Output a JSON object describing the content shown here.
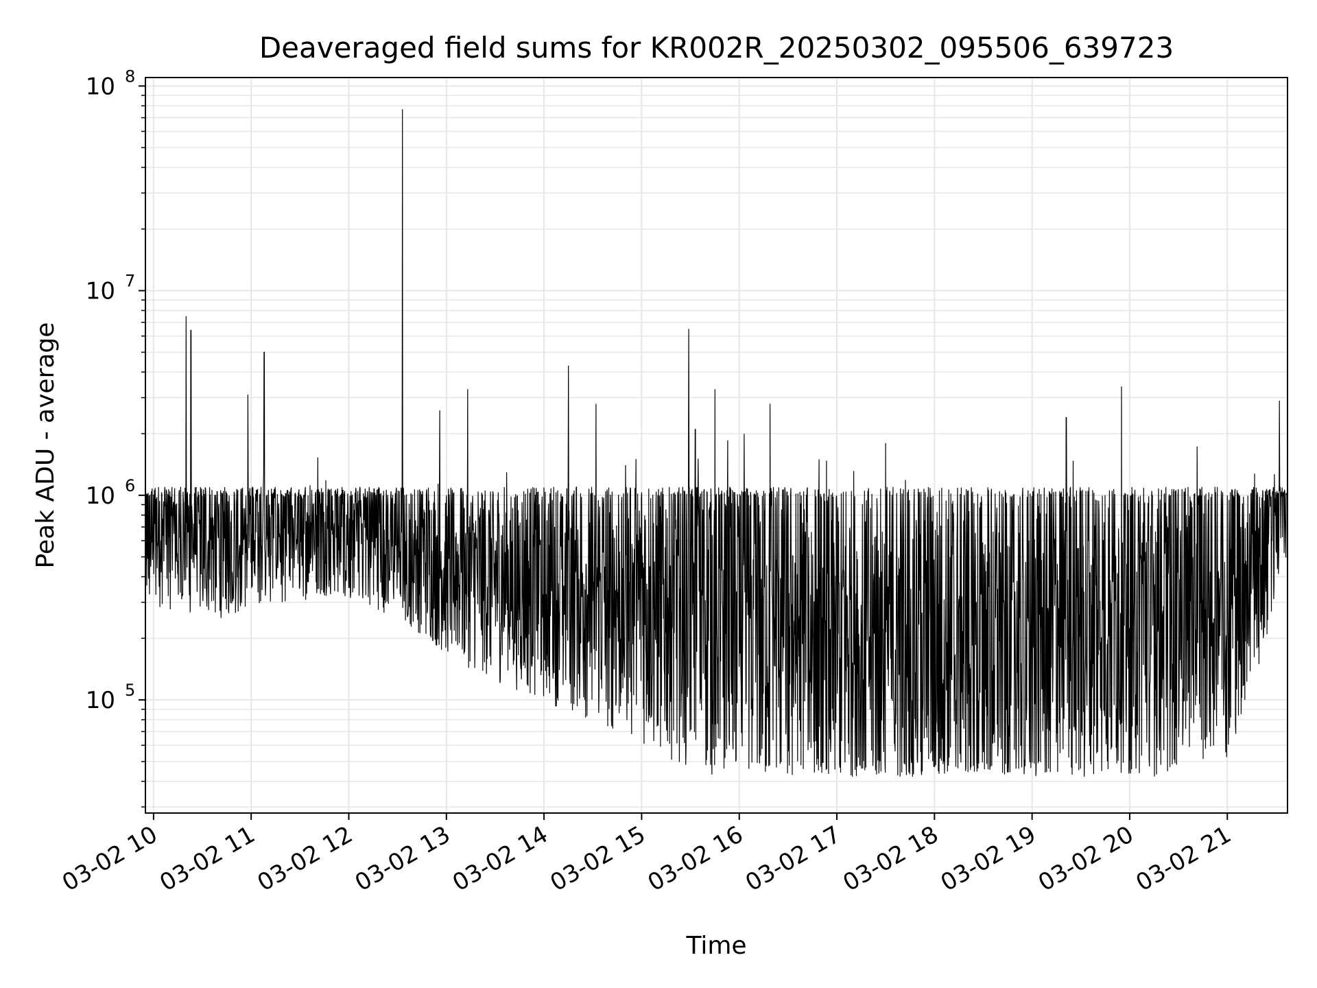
{
  "chart_data": {
    "type": "line",
    "title": "Deaveraged field sums for KR002R_20250302_095506_639723",
    "xlabel": "Time",
    "ylabel": "Peak ADU - average",
    "yscale": "log",
    "ylim": [
      28000,
      110000000
    ],
    "xlim": [
      "03-02 09:55",
      "03-02 21:37"
    ],
    "grid": true,
    "line_color": "#000000",
    "grid_color": "#e6e6e6",
    "x_ticks": [
      {
        "at": "03-02 10:00",
        "label": "03-02 10"
      },
      {
        "at": "03-02 11:00",
        "label": "03-02 11"
      },
      {
        "at": "03-02 12:00",
        "label": "03-02 12"
      },
      {
        "at": "03-02 13:00",
        "label": "03-02 13"
      },
      {
        "at": "03-02 14:00",
        "label": "03-02 14"
      },
      {
        "at": "03-02 15:00",
        "label": "03-02 15"
      },
      {
        "at": "03-02 16:00",
        "label": "03-02 16"
      },
      {
        "at": "03-02 17:00",
        "label": "03-02 17"
      },
      {
        "at": "03-02 18:00",
        "label": "03-02 18"
      },
      {
        "at": "03-02 19:00",
        "label": "03-02 19"
      },
      {
        "at": "03-02 20:00",
        "label": "03-02 20"
      },
      {
        "at": "03-02 21:00",
        "label": "03-02 21"
      }
    ],
    "y_ticks": [
      {
        "value": 100000,
        "base": "10",
        "exp": "5"
      },
      {
        "value": 1000000,
        "base": "10",
        "exp": "6"
      },
      {
        "value": 10000000,
        "base": "10",
        "exp": "7"
      },
      {
        "value": 100000000,
        "base": "10",
        "exp": "8"
      }
    ],
    "series": [
      {
        "points": [
          [
            "03-02 09:55",
            650000
          ],
          [
            "03-02 10:05",
            700000
          ],
          [
            "03-02 10:15",
            650000
          ],
          [
            "03-02 10:30",
            600000
          ],
          [
            "03-02 10:45",
            620000
          ],
          [
            "03-02 11:00",
            680000
          ],
          [
            "03-02 11:15",
            720000
          ],
          [
            "03-02 11:30",
            750000
          ],
          [
            "03-02 11:45",
            780000
          ],
          [
            "03-02 12:00",
            760000
          ],
          [
            "03-02 12:15",
            700000
          ],
          [
            "03-02 12:30",
            600000
          ],
          [
            "03-02 12:45",
            520000
          ],
          [
            "03-02 13:00",
            450000
          ],
          [
            "03-02 13:30",
            400000
          ],
          [
            "03-02 14:00",
            380000
          ],
          [
            "03-02 14:30",
            350000
          ],
          [
            "03-02 15:00",
            320000
          ],
          [
            "03-02 15:30",
            300000
          ],
          [
            "03-02 16:00",
            270000
          ],
          [
            "03-02 16:30",
            240000
          ],
          [
            "03-02 17:00",
            210000
          ],
          [
            "03-02 17:30",
            200000
          ],
          [
            "03-02 18:00",
            200000
          ],
          [
            "03-02 18:30",
            210000
          ],
          [
            "03-02 19:00",
            230000
          ],
          [
            "03-02 19:30",
            260000
          ],
          [
            "03-02 20:00",
            300000
          ],
          [
            "03-02 20:30",
            330000
          ],
          [
            "03-02 21:00",
            400000
          ],
          [
            "03-02 21:20",
            600000
          ],
          [
            "03-02 21:37",
            1300000
          ]
        ],
        "spikes": [
          [
            "03-02 10:20",
            7500000
          ],
          [
            "03-02 10:23",
            6400000
          ],
          [
            "03-02 11:08",
            5000000
          ],
          [
            "03-02 10:58",
            3100000
          ],
          [
            "03-02 12:33",
            77000000
          ],
          [
            "03-02 14:15",
            4300000
          ],
          [
            "03-02 15:29",
            6500000
          ],
          [
            "03-02 15:33",
            2100000
          ],
          [
            "03-02 16:19",
            2800000
          ],
          [
            "03-02 13:13",
            3300000
          ],
          [
            "03-02 12:56",
            2600000
          ],
          [
            "03-02 14:32",
            2800000
          ],
          [
            "03-02 16:03",
            2000000
          ],
          [
            "03-02 17:30",
            1800000
          ],
          [
            "03-02 19:21",
            2400000
          ],
          [
            "03-02 19:55",
            3400000
          ],
          [
            "03-02 21:32",
            2900000
          ],
          [
            "03-02 15:45",
            3300000
          ]
        ]
      }
    ]
  }
}
